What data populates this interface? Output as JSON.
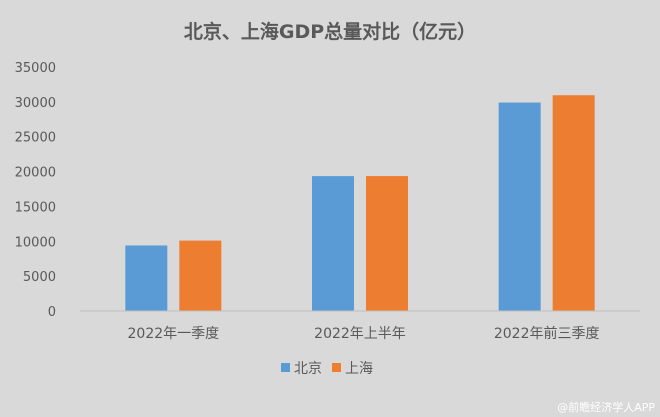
{
  "chart_data": {
    "type": "bar",
    "title": "北京、上海GDP总量对比（亿元）",
    "categories": [
      "2022年一季度",
      "2022年上半年",
      "2022年前三季度"
    ],
    "series": [
      {
        "name": "北京",
        "color": "#5b9bd5",
        "values": [
          9400,
          19350,
          29900
        ]
      },
      {
        "name": "上海",
        "color": "#ed7d31",
        "values": [
          10100,
          19350,
          30950
        ]
      }
    ],
    "y_ticks": [
      "0",
      "5000",
      "10000",
      "15000",
      "20000",
      "25000",
      "30000",
      "35000"
    ],
    "ylim": [
      0,
      35000
    ],
    "grid": false,
    "legend_position": "bottom"
  },
  "watermark": "@前瞻经济学人APP"
}
